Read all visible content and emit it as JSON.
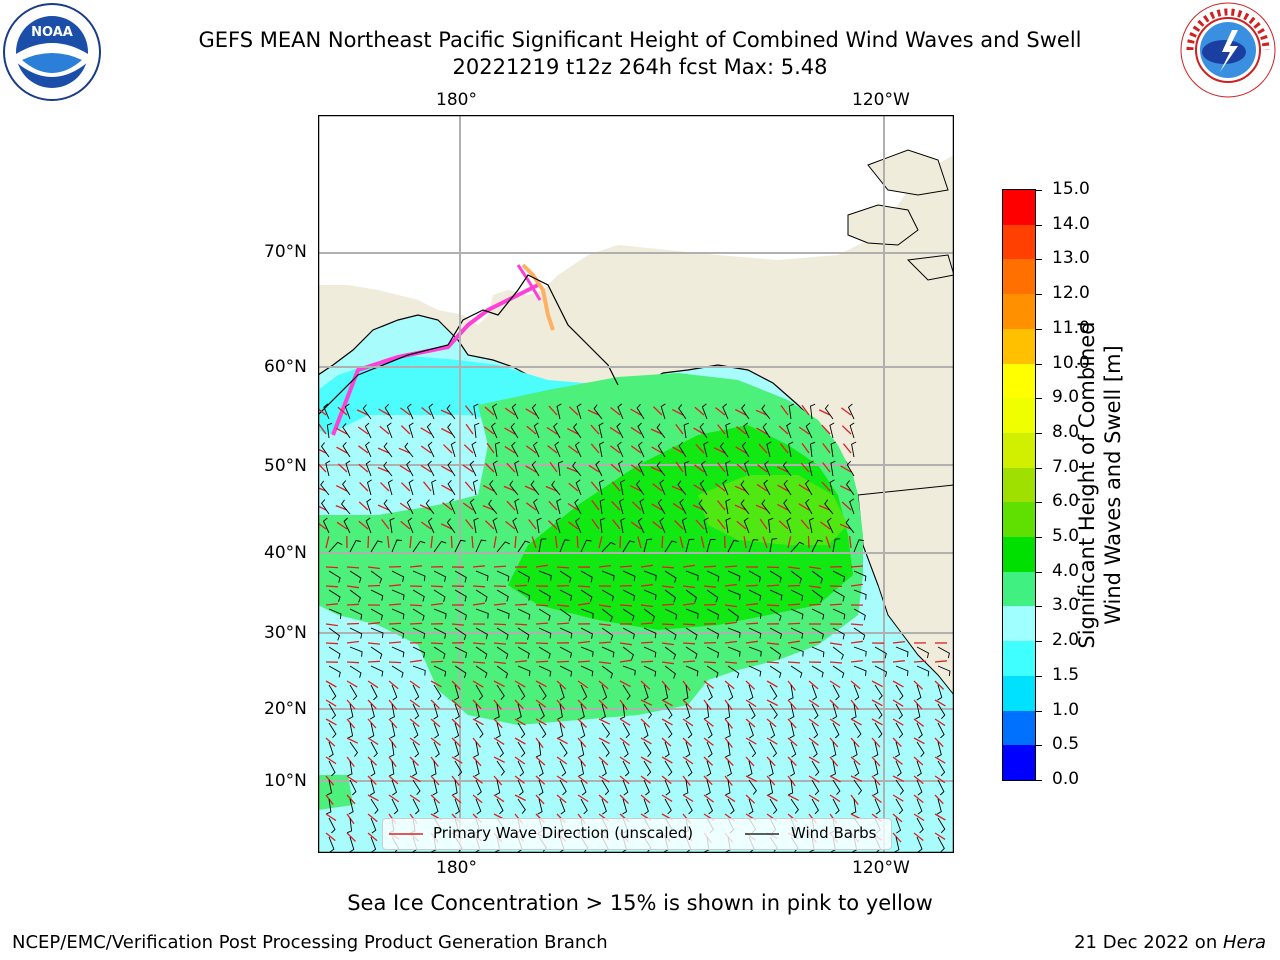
{
  "title": {
    "line1": "GEFS MEAN Northeast Pacific Significant Height of Combined Wind Waves and Swell",
    "line2": "20221219 t12z 264h fcst   Max: 5.48"
  },
  "map": {
    "lon_labels": [
      "180°",
      "120°W"
    ],
    "lat_labels": [
      "70°N",
      "60°N",
      "50°N",
      "40°N",
      "30°N",
      "20°N",
      "10°N"
    ],
    "legend": {
      "wave_label": "Primary Wave Direction (unscaled)",
      "wind_label": "Wind Barbs",
      "wave_color": "#e02020",
      "wind_color": "#000000"
    },
    "ocean_colors": {
      "land": "#efecdc",
      "light_cyan": "#a8fcfc",
      "cyan": "#4dfcfc",
      "light_green": "#4cf07a",
      "green": "#12e812",
      "lime": "#50e812"
    }
  },
  "colorbar": {
    "label_line1": "Significant Height of Combined",
    "label_line2": "Wind Waves and Swell [m]",
    "ticks": [
      "15.0",
      "14.0",
      "13.0",
      "12.0",
      "11.0",
      "10.0",
      "9.0",
      "8.0",
      "7.0",
      "6.0",
      "5.0",
      "4.0",
      "3.0",
      "2.0",
      "1.5",
      "1.0",
      "0.5",
      "0.0"
    ],
    "colors_bottom_to_top": [
      "#0000ff",
      "#0070ff",
      "#00e0ff",
      "#40ffff",
      "#a0ffff",
      "#40f080",
      "#00e000",
      "#60e000",
      "#a0e000",
      "#d0f000",
      "#f0ff00",
      "#ffff00",
      "#ffc000",
      "#ff9000",
      "#ff7000",
      "#ff4000",
      "#ff0000"
    ]
  },
  "footer": {
    "sea_ice": "Sea Ice Concentration > 15% is shown in pink to yellow",
    "branch": "NCEP/EMC/Verification Post Processing Product Generation Branch",
    "date": "21 Dec 2022 on ",
    "host": "Hera"
  },
  "logos": {
    "noaa_text": "NOAA",
    "noaa_ring": "NATIONAL OCEANIC AND ATMOSPHERIC ADMINISTRATION · U.S. DEPARTMENT OF COMMERCE",
    "nws_ring": "NATIONAL WEATHER SERVICE"
  }
}
